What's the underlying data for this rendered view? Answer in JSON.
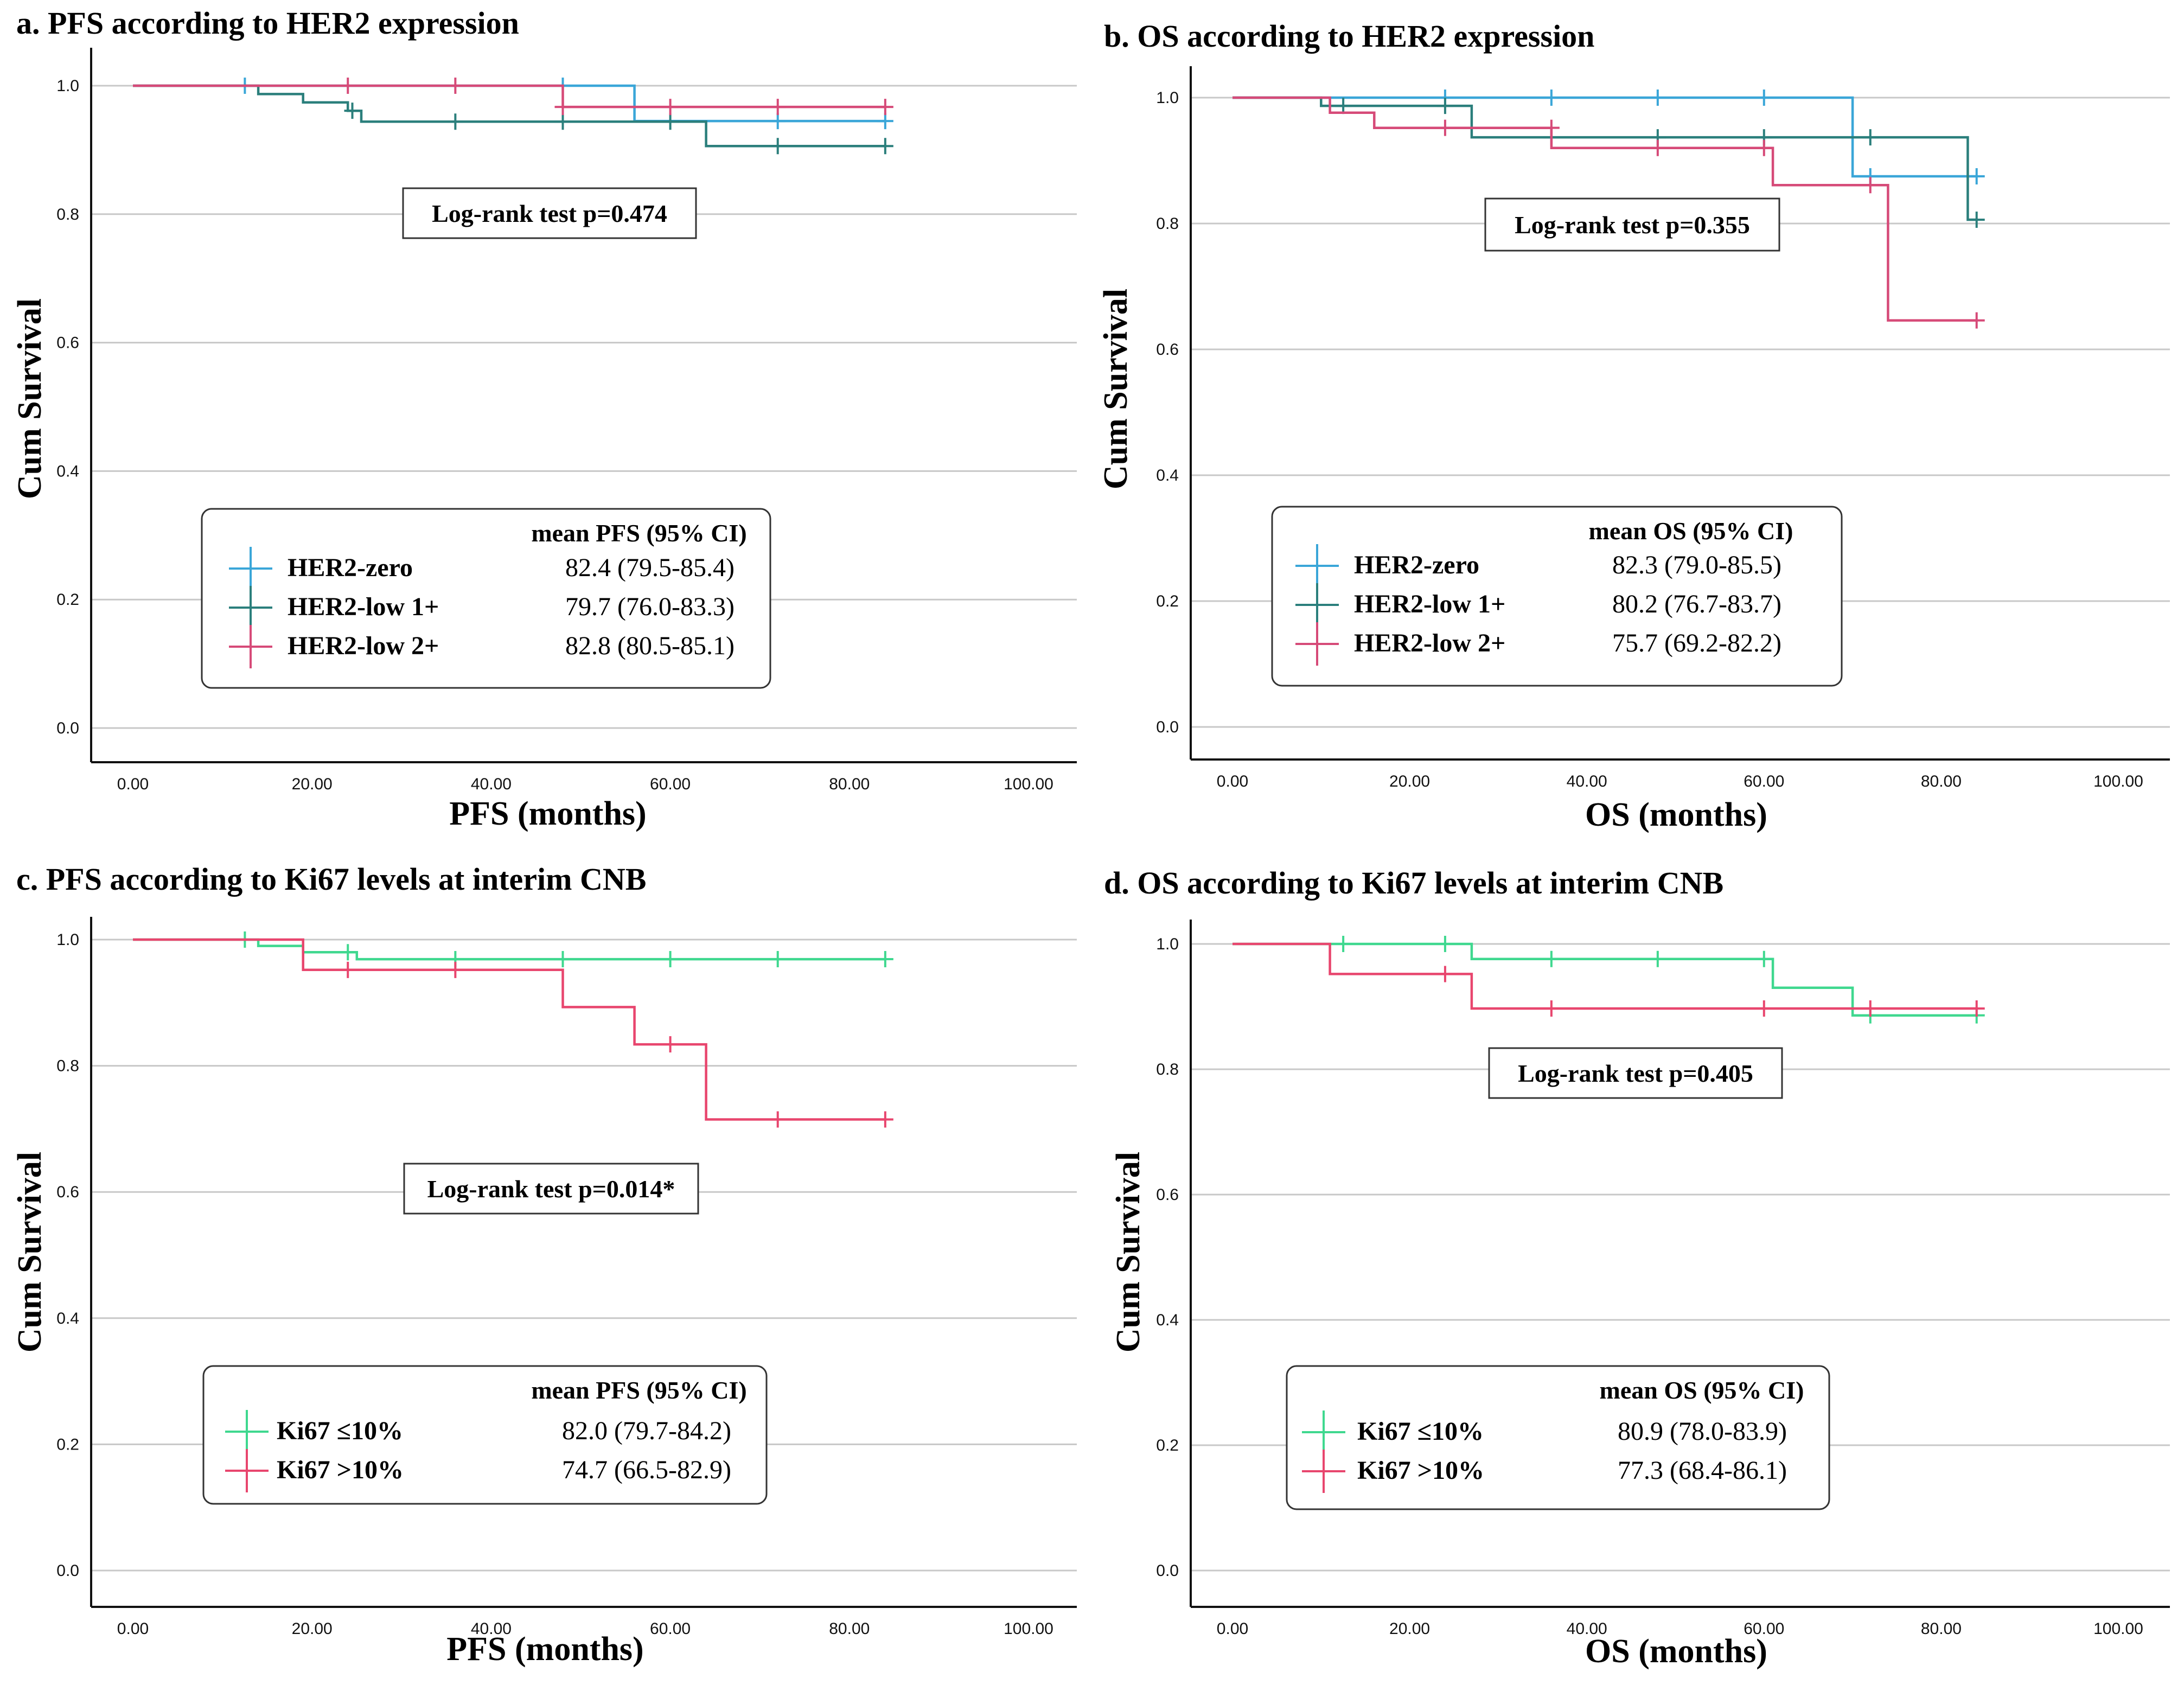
{
  "figure_label": "Kaplan-Meier survival curves",
  "chart_data": [
    {
      "id": "a",
      "type": "line",
      "title": "a. PFS according to HER2 expression",
      "xlabel": "PFS (months)",
      "ylabel": "Cum Survival",
      "xlim": [
        0,
        100
      ],
      "ylim": [
        0,
        1.0
      ],
      "xticks": [
        "0.00",
        "20.00",
        "40.00",
        "60.00",
        "80.00",
        "100.00"
      ],
      "yticks": [
        "0.0",
        "0.2",
        "0.4",
        "0.6",
        "0.8",
        "1.0"
      ],
      "logrank": "Log-rank test p=0.474",
      "legend_header": "mean PFS (95% CI)",
      "series": [
        {
          "name": "HER2-zero",
          "color": "#3aa6d8",
          "value": "82.4 (79.5-85.4)",
          "steps": [
            [
              0,
              1.0
            ],
            [
              56,
              1.0
            ],
            [
              56,
              0.945
            ],
            [
              84,
              0.945
            ]
          ],
          "censors": [
            [
              12.5,
              1.0
            ],
            [
              48,
              1.0
            ],
            [
              72,
              0.945
            ],
            [
              84,
              0.945
            ]
          ]
        },
        {
          "name": "HER2-low 1+",
          "color": "#2b7f7c",
          "value": "79.7 (76.0-83.3)",
          "steps": [
            [
              0,
              1.0
            ],
            [
              14,
              1.0
            ],
            [
              14,
              0.987
            ],
            [
              19,
              0.987
            ],
            [
              19,
              0.974
            ],
            [
              24,
              0.974
            ],
            [
              24,
              0.961
            ],
            [
              25.5,
              0.961
            ],
            [
              25.5,
              0.944
            ],
            [
              64,
              0.944
            ],
            [
              64,
              0.906
            ],
            [
              84,
              0.906
            ]
          ],
          "censors": [
            [
              24.5,
              0.961
            ],
            [
              36,
              0.944
            ],
            [
              48,
              0.944
            ],
            [
              60,
              0.944
            ],
            [
              72,
              0.906
            ],
            [
              84,
              0.906
            ]
          ]
        },
        {
          "name": "HER2-low 2+",
          "color": "#d64a78",
          "value": "82.8 (80.5-85.1)",
          "steps": [
            [
              0,
              1.0
            ],
            [
              48,
              1.0
            ],
            [
              48,
              0.967
            ],
            [
              84,
              0.967
            ]
          ],
          "censors": [
            [
              24,
              1.0
            ],
            [
              36,
              1.0
            ],
            [
              48,
              0.967
            ],
            [
              60,
              0.967
            ],
            [
              72,
              0.967
            ],
            [
              84,
              0.967
            ]
          ]
        }
      ]
    },
    {
      "id": "b",
      "type": "line",
      "title": "b. OS according to HER2 expression",
      "xlabel": "OS (months)",
      "ylabel": "Cum Survival",
      "xlim": [
        0,
        100
      ],
      "ylim": [
        0,
        1.0
      ],
      "xticks": [
        "0.00",
        "20.00",
        "40.00",
        "60.00",
        "80.00",
        "100.00"
      ],
      "yticks": [
        "0.0",
        "0.2",
        "0.4",
        "0.6",
        "0.8",
        "1.0"
      ],
      "logrank": "Log-rank test p=0.355",
      "legend_header": "mean OS (95% CI)",
      "series": [
        {
          "name": "HER2-zero",
          "color": "#3aa6d8",
          "value": "82.3 (79.0-85.5)",
          "steps": [
            [
              0,
              1.0
            ],
            [
              70,
              1.0
            ],
            [
              70,
              0.875
            ],
            [
              84,
              0.875
            ]
          ],
          "censors": [
            [
              24,
              1.0
            ],
            [
              36,
              1.0
            ],
            [
              48,
              1.0
            ],
            [
              60,
              1.0
            ],
            [
              72,
              0.875
            ],
            [
              84,
              0.875
            ]
          ]
        },
        {
          "name": "HER2-low 1+",
          "color": "#2b7f7c",
          "value": "80.2 (76.7-83.7)",
          "steps": [
            [
              0,
              1.0
            ],
            [
              10,
              1.0
            ],
            [
              10,
              0.987
            ],
            [
              27,
              0.987
            ],
            [
              27,
              0.937
            ],
            [
              83,
              0.937
            ],
            [
              83,
              0.806
            ],
            [
              84,
              0.806
            ]
          ],
          "censors": [
            [
              12.5,
              0.987
            ],
            [
              24,
              0.987
            ],
            [
              36,
              0.937
            ],
            [
              48,
              0.937
            ],
            [
              60,
              0.937
            ],
            [
              72,
              0.937
            ],
            [
              84,
              0.806
            ]
          ]
        },
        {
          "name": "HER2-low 2+",
          "color": "#d64a78",
          "value": "75.7 (69.2-82.2)",
          "steps": [
            [
              0,
              1.0
            ],
            [
              11,
              1.0
            ],
            [
              11,
              0.976
            ],
            [
              16,
              0.976
            ],
            [
              16,
              0.952
            ],
            [
              36,
              0.952
            ],
            [
              36,
              0.92
            ],
            [
              61,
              0.92
            ],
            [
              61,
              0.861
            ],
            [
              74,
              0.861
            ],
            [
              74,
              0.646
            ],
            [
              84,
              0.646
            ]
          ],
          "censors": [
            [
              24,
              0.952
            ],
            [
              36,
              0.952
            ],
            [
              48,
              0.92
            ],
            [
              60,
              0.92
            ],
            [
              72,
              0.861
            ],
            [
              84,
              0.646
            ]
          ]
        }
      ]
    },
    {
      "id": "c",
      "type": "line",
      "title": "c. PFS according to Ki67 levels at interim CNB",
      "xlabel": "PFS (months)",
      "ylabel": "Cum Survival",
      "xlim": [
        0,
        100
      ],
      "ylim": [
        0,
        1.0
      ],
      "xticks": [
        "0.00",
        "20.00",
        "40.00",
        "60.00",
        "80.00",
        "100.00"
      ],
      "yticks": [
        "0.0",
        "0.2",
        "0.4",
        "0.6",
        "0.8",
        "1.0"
      ],
      "logrank": "Log-rank test p=0.014*",
      "legend_header": "mean PFS (95% CI)",
      "series": [
        {
          "name": "Ki67 ≤10%",
          "color": "#3fd88f",
          "value": "82.0 (79.7-84.2)",
          "steps": [
            [
              0,
              1.0
            ],
            [
              14,
              1.0
            ],
            [
              14,
              0.99
            ],
            [
              19,
              0.99
            ],
            [
              19,
              0.98
            ],
            [
              25,
              0.98
            ],
            [
              25,
              0.969
            ],
            [
              84,
              0.969
            ]
          ],
          "censors": [
            [
              12.5,
              1.0
            ],
            [
              24,
              0.98
            ],
            [
              36,
              0.969
            ],
            [
              48,
              0.969
            ],
            [
              60,
              0.969
            ],
            [
              72,
              0.969
            ],
            [
              84,
              0.969
            ]
          ]
        },
        {
          "name": "Ki67 >10%",
          "color": "#e8466e",
          "value": "74.7 (66.5-82.9)",
          "steps": [
            [
              0,
              1.0
            ],
            [
              19,
              1.0
            ],
            [
              19,
              0.952
            ],
            [
              48,
              0.952
            ],
            [
              48,
              0.893
            ],
            [
              56,
              0.893
            ],
            [
              56,
              0.834
            ],
            [
              64,
              0.834
            ],
            [
              64,
              0.715
            ],
            [
              84,
              0.715
            ]
          ],
          "censors": [
            [
              24,
              0.952
            ],
            [
              36,
              0.952
            ],
            [
              60,
              0.834
            ],
            [
              72,
              0.715
            ],
            [
              84,
              0.715
            ]
          ]
        }
      ]
    },
    {
      "id": "d",
      "type": "line",
      "title": "d. OS according to Ki67 levels at interim CNB",
      "xlabel": "OS (months)",
      "ylabel": "Cum Survival",
      "xlim": [
        0,
        100
      ],
      "ylim": [
        0,
        1.0
      ],
      "xticks": [
        "0.00",
        "20.00",
        "40.00",
        "60.00",
        "80.00",
        "100.00"
      ],
      "yticks": [
        "0.0",
        "0.2",
        "0.4",
        "0.6",
        "0.8",
        "1.0"
      ],
      "logrank": "Log-rank test p=0.405",
      "legend_header": "mean OS (95% CI)",
      "series": [
        {
          "name": "Ki67 ≤10%",
          "color": "#3fd88f",
          "value": "80.9 (78.0-83.9)",
          "steps": [
            [
              0,
              1.0
            ],
            [
              27,
              1.0
            ],
            [
              27,
              0.976
            ],
            [
              61,
              0.976
            ],
            [
              61,
              0.93
            ],
            [
              70,
              0.93
            ],
            [
              70,
              0.886
            ],
            [
              84,
              0.886
            ]
          ],
          "censors": [
            [
              12.5,
              1.0
            ],
            [
              24,
              1.0
            ],
            [
              36,
              0.976
            ],
            [
              48,
              0.976
            ],
            [
              60,
              0.976
            ],
            [
              72,
              0.886
            ],
            [
              84,
              0.886
            ]
          ]
        },
        {
          "name": "Ki67 >10%",
          "color": "#e8466e",
          "value": "77.3 (68.4-86.1)",
          "steps": [
            [
              0,
              1.0
            ],
            [
              11,
              1.0
            ],
            [
              11,
              0.952
            ],
            [
              27,
              0.952
            ],
            [
              27,
              0.897
            ],
            [
              84,
              0.897
            ]
          ],
          "censors": [
            [
              24,
              0.952
            ],
            [
              36,
              0.897
            ],
            [
              60,
              0.897
            ],
            [
              72,
              0.897
            ],
            [
              84,
              0.897
            ]
          ]
        }
      ]
    }
  ]
}
